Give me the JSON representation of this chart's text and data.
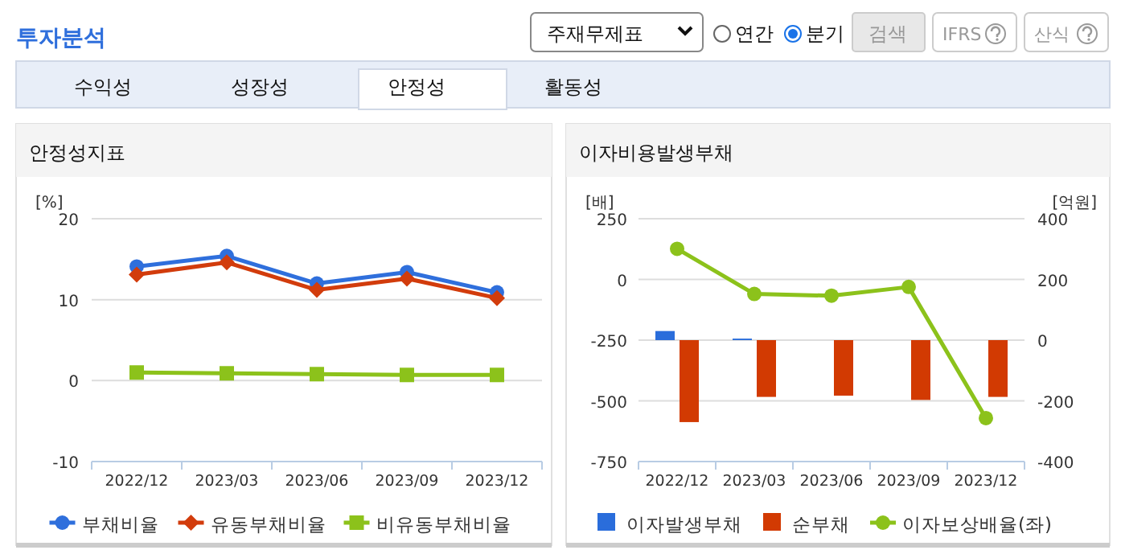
{
  "chart_data": [
    {
      "type": "other",
      "title": "투자분석",
      "annotations": [
        "주재무제표",
        "연간",
        "분기",
        "검색",
        "IFRS",
        "산식",
        "수익성",
        "성장성",
        "안정성",
        "활동성"
      ]
    },
    {
      "type": "line",
      "title": "안정성지표",
      "ylabel": "[%]",
      "categories": [
        "2022/12",
        "2023/03",
        "2023/06",
        "2023/09",
        "2023/12"
      ],
      "ylim": [
        -10,
        20
      ],
      "yticks": [
        -10,
        0,
        10,
        20
      ],
      "grid": "y",
      "legend": "bottom",
      "series": [
        {
          "name": "부채비율",
          "color": "#2f6fdc",
          "marker": "circle",
          "values": [
            14.1,
            15.4,
            12.0,
            13.4,
            10.9
          ]
        },
        {
          "name": "유동부채비율",
          "color": "#d23c0c",
          "marker": "diamond",
          "values": [
            13.1,
            14.6,
            11.2,
            12.6,
            10.2
          ]
        },
        {
          "name": "비유동부채비율",
          "color": "#8cc21b",
          "marker": "square",
          "values": [
            1.0,
            0.9,
            0.8,
            0.7,
            0.7
          ]
        }
      ]
    },
    {
      "type": "bar",
      "title": "이자비용발생부채",
      "ylabel": "[배]",
      "y2label": "[억원]",
      "categories": [
        "2022/12",
        "2023/03",
        "2023/06",
        "2023/09",
        "2023/12"
      ],
      "ylim": [
        -750,
        250
      ],
      "yticks": [
        -750,
        -500,
        -250,
        0,
        250
      ],
      "y2lim": [
        -400,
        400
      ],
      "y2ticks": [
        -400,
        -200,
        0,
        200,
        400
      ],
      "grid": "y",
      "legend": "bottom",
      "series": [
        {
          "name": "이자발생부채",
          "color": "#2a6ddb",
          "axis": "y2",
          "values": [
            30,
            5,
            0,
            0,
            0
          ]
        },
        {
          "name": "순부채",
          "color": "#d23a02",
          "axis": "y2",
          "values": [
            -270,
            -187,
            -183,
            -197,
            -187
          ]
        },
        {
          "name": "이자보상배율(좌)",
          "type": "line",
          "color": "#8cc21b",
          "marker": "circle",
          "axis": "y",
          "values": [
            126,
            -60,
            -67,
            -31,
            -571
          ]
        }
      ]
    }
  ]
}
